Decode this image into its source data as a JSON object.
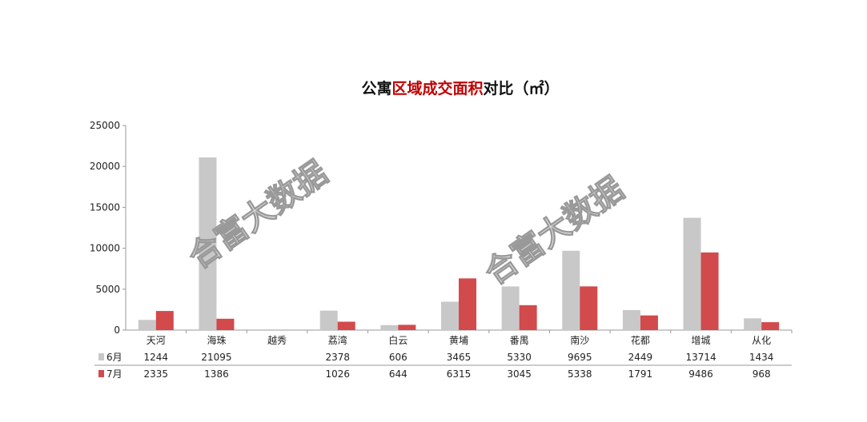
{
  "title_parts": {
    "prefix": "公寓",
    "highlight": "区域成交面积",
    "suffix": "对比（㎡）"
  },
  "watermark": "合富大数据",
  "chart_data": {
    "type": "bar",
    "title": "公寓区域成交面积对比（㎡）",
    "categories": [
      "天河",
      "海珠",
      "越秀",
      "荔湾",
      "白云",
      "黄埔",
      "番禺",
      "南沙",
      "花都",
      "增城",
      "从化"
    ],
    "series": [
      {
        "name": "6月",
        "color": "#c8c8c8",
        "values": [
          1244,
          21095,
          null,
          2378,
          606,
          3465,
          5330,
          9695,
          2449,
          13714,
          1434
        ]
      },
      {
        "name": "7月",
        "color": "#d24a4c",
        "values": [
          2335,
          1386,
          null,
          1026,
          644,
          6315,
          3045,
          5338,
          1791,
          9486,
          968
        ]
      }
    ],
    "ylim": [
      0,
      25000
    ],
    "yticks": [
      0,
      5000,
      10000,
      15000,
      20000,
      25000
    ],
    "grid": false,
    "legend": "data-table"
  }
}
